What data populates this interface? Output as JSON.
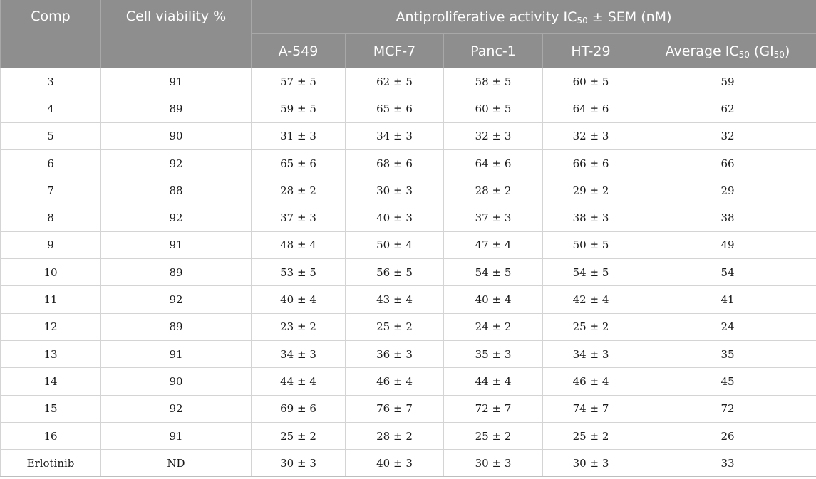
{
  "header": {
    "comp": "Comp",
    "viability": "Cell viability %",
    "group": {
      "pre": "Antiproliferative activity IC",
      "sub": "50",
      "post": " ± SEM (nM)"
    },
    "cols": [
      "A-549",
      "MCF-7",
      "Panc-1",
      "HT-29"
    ],
    "average": {
      "pre": "Average IC",
      "sub1": "50",
      "mid": " (GI",
      "sub2": "50",
      "post": ")"
    }
  },
  "rows": [
    {
      "comp": "3",
      "viability": "91",
      "a549": "57 ± 5",
      "mcf7": "62 ± 5",
      "panc1": "58 ± 5",
      "ht29": "60 ± 5",
      "avg": "59"
    },
    {
      "comp": "4",
      "viability": "89",
      "a549": "59 ± 5",
      "mcf7": "65 ± 6",
      "panc1": "60 ± 5",
      "ht29": "64 ± 6",
      "avg": "62"
    },
    {
      "comp": "5",
      "viability": "90",
      "a549": "31 ± 3",
      "mcf7": "34 ± 3",
      "panc1": "32 ± 3",
      "ht29": "32 ± 3",
      "avg": "32"
    },
    {
      "comp": "6",
      "viability": "92",
      "a549": "65 ± 6",
      "mcf7": "68 ± 6",
      "panc1": "64 ± 6",
      "ht29": "66 ± 6",
      "avg": "66"
    },
    {
      "comp": "7",
      "viability": "88",
      "a549": "28 ± 2",
      "mcf7": "30 ± 3",
      "panc1": "28 ± 2",
      "ht29": "29 ± 2",
      "avg": "29"
    },
    {
      "comp": "8",
      "viability": "92",
      "a549": "37 ± 3",
      "mcf7": "40 ± 3",
      "panc1": "37 ± 3",
      "ht29": "38 ± 3",
      "avg": "38"
    },
    {
      "comp": "9",
      "viability": "91",
      "a549": "48 ± 4",
      "mcf7": "50 ± 4",
      "panc1": "47 ± 4",
      "ht29": "50 ± 5",
      "avg": "49"
    },
    {
      "comp": "10",
      "viability": "89",
      "a549": "53 ± 5",
      "mcf7": "56 ± 5",
      "panc1": "54 ± 5",
      "ht29": "54 ± 5",
      "avg": "54"
    },
    {
      "comp": "11",
      "viability": "92",
      "a549": "40 ± 4",
      "mcf7": "43 ± 4",
      "panc1": "40 ± 4",
      "ht29": "42 ± 4",
      "avg": "41"
    },
    {
      "comp": "12",
      "viability": "89",
      "a549": "23 ± 2",
      "mcf7": "25 ± 2",
      "panc1": "24 ± 2",
      "ht29": "25 ± 2",
      "avg": "24"
    },
    {
      "comp": "13",
      "viability": "91",
      "a549": "34 ± 3",
      "mcf7": "36 ± 3",
      "panc1": "35 ± 3",
      "ht29": "34 ± 3",
      "avg": "35"
    },
    {
      "comp": "14",
      "viability": "90",
      "a549": "44 ± 4",
      "mcf7": "46 ± 4",
      "panc1": "44 ± 4",
      "ht29": "46 ± 4",
      "avg": "45"
    },
    {
      "comp": "15",
      "viability": "92",
      "a549": "69 ± 6",
      "mcf7": "76 ± 7",
      "panc1": "72 ± 7",
      "ht29": "74 ± 7",
      "avg": "72"
    },
    {
      "comp": "16",
      "viability": "91",
      "a549": "25 ± 2",
      "mcf7": "28 ± 2",
      "panc1": "25 ± 2",
      "ht29": "25 ± 2",
      "avg": "26"
    },
    {
      "comp": "Erlotinib",
      "viability": "ND",
      "a549": "30 ± 3",
      "mcf7": "40 ± 3",
      "panc1": "30 ± 3",
      "ht29": "30 ± 3",
      "avg": "33"
    }
  ]
}
